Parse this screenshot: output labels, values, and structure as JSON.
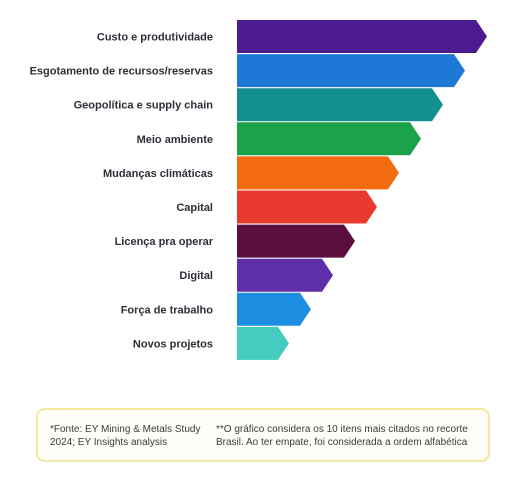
{
  "chart_data": {
    "type": "bar",
    "orientation": "horizontal",
    "title": "",
    "xlabel": "",
    "ylabel": "",
    "categories": [
      "Custo e produtividade",
      "Esgotamento de recursos/reservas",
      "Geopolítica e supply chain",
      "Meio ambiente",
      "Mudanças climáticas",
      "Capital",
      "Licença pra operar",
      "Digital",
      "Força de trabalho",
      "Novos projetos"
    ],
    "values": [
      10,
      9,
      8,
      7,
      6,
      5,
      4,
      3,
      2,
      1
    ],
    "colors": [
      "#4b1b8f",
      "#1e78d6",
      "#138f8f",
      "#1aa34a",
      "#f26b0f",
      "#e83a2e",
      "#5b0f3f",
      "#5e2fa8",
      "#1e8ee2",
      "#45cbbf"
    ],
    "grid": false,
    "legend": "none"
  },
  "footnote": {
    "source": "*Fonte: EY Mining & Metals Study 2024; EY Insights analysis",
    "note": "**O gráfico considera os 10 itens mais citados no recorte Brasil. Ao ter empate, foi considerada a ordem alfabética"
  }
}
